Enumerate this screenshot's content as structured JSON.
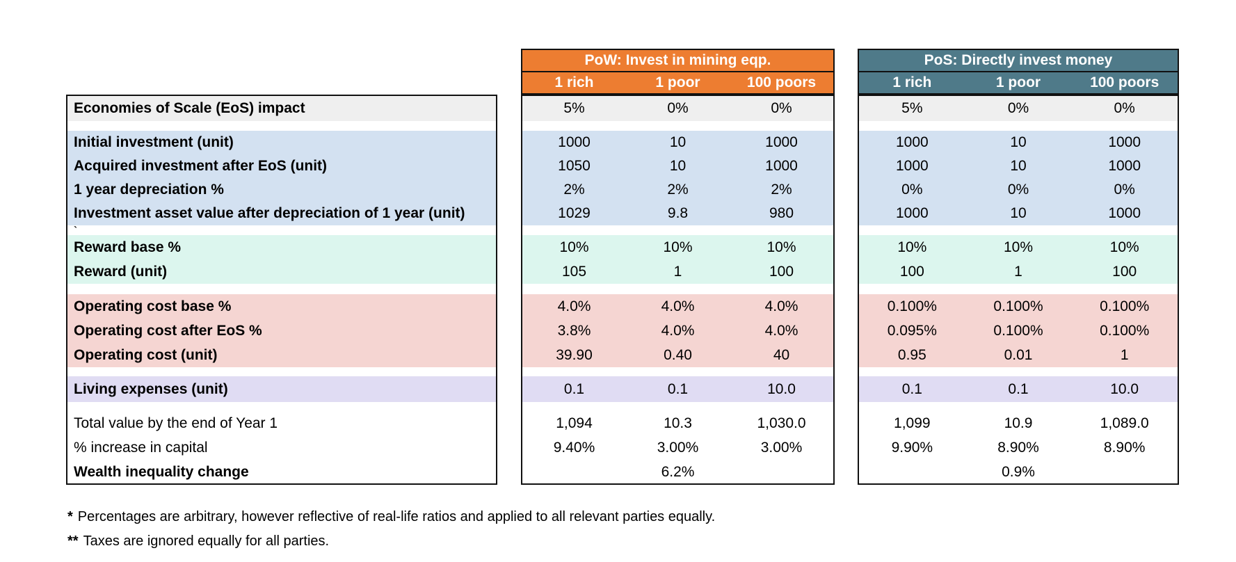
{
  "groups": [
    {
      "key": "pow",
      "title": "PoW: Invest in mining eqp.",
      "accent_color": "#ED7D31",
      "columns": [
        "1 rich",
        "1 poor",
        "100 poors"
      ]
    },
    {
      "key": "pos",
      "title": "PoS: Directly invest money",
      "accent_color": "#4F7A89",
      "columns": [
        "1 rich",
        "1 poor",
        "100 poors"
      ]
    }
  ],
  "section_colors": {
    "gray": "#EFEFEF",
    "blue": "#D3E1F1",
    "mint": "#DCF6EE",
    "pink": "#F5D5D2",
    "lavender": "#E0DCF3"
  },
  "rows": [
    {
      "section": "gray",
      "bold": true,
      "label": "Economies of Scale (EoS) impact",
      "pow": [
        "5%",
        "0%",
        "0%"
      ],
      "pos": [
        "5%",
        "0%",
        "0%"
      ]
    },
    {
      "section": "gap1"
    },
    {
      "section": "blue",
      "bold": true,
      "label": "Initial investment (unit)",
      "pow": [
        "1000",
        "10",
        "1000"
      ],
      "pos": [
        "1000",
        "10",
        "1000"
      ]
    },
    {
      "section": "blue",
      "bold": true,
      "label": "Acquired investment after EoS (unit)",
      "pow": [
        "1050",
        "10",
        "1000"
      ],
      "pos": [
        "1000",
        "10",
        "1000"
      ]
    },
    {
      "section": "blue",
      "bold": true,
      "label": "1 year depreciation %",
      "pow": [
        "2%",
        "2%",
        "2%"
      ],
      "pos": [
        "0%",
        "0%",
        "0%"
      ]
    },
    {
      "section": "blue",
      "bold": true,
      "label": "Investment asset value after depreciation of 1 year (unit)",
      "pow": [
        "1029",
        "9.8",
        "980"
      ],
      "pos": [
        "1000",
        "10",
        "1000"
      ]
    },
    {
      "section": "tick",
      "bold": true,
      "label": "`"
    },
    {
      "section": "mint",
      "bold": true,
      "label": "Reward base %",
      "pow": [
        "10%",
        "10%",
        "10%"
      ],
      "pos": [
        "10%",
        "10%",
        "10%"
      ]
    },
    {
      "section": "mint",
      "bold": true,
      "label": "Reward (unit)",
      "pow": [
        "105",
        "1",
        "100"
      ],
      "pos": [
        "100",
        "1",
        "100"
      ]
    },
    {
      "section": "gap2"
    },
    {
      "section": "pink",
      "bold": true,
      "label": "Operating cost base %",
      "pow": [
        "4.0%",
        "4.0%",
        "4.0%"
      ],
      "pos": [
        "0.100%",
        "0.100%",
        "0.100%"
      ]
    },
    {
      "section": "pink",
      "bold": true,
      "label": "Operating cost after EoS %",
      "pow": [
        "3.8%",
        "4.0%",
        "4.0%"
      ],
      "pos": [
        "0.095%",
        "0.100%",
        "0.100%"
      ]
    },
    {
      "section": "pink",
      "bold": true,
      "label": "Operating cost (unit)",
      "pow": [
        "39.90",
        "0.40",
        "40"
      ],
      "pos": [
        "0.95",
        "0.01",
        "1"
      ]
    },
    {
      "section": "gap3"
    },
    {
      "section": "lavender",
      "bold": true,
      "label": "Living expenses (unit)",
      "pow": [
        "0.1",
        "0.1",
        "10.0"
      ],
      "pos": [
        "0.1",
        "0.1",
        "10.0"
      ]
    },
    {
      "section": "gap4"
    },
    {
      "section": "white",
      "bold": false,
      "label": "Total value by the end of Year 1",
      "pow": [
        "1,094",
        "10.3",
        "1,030.0"
      ],
      "pos": [
        "1,099",
        "10.9",
        "1,089.0"
      ]
    },
    {
      "section": "white",
      "bold": false,
      "label": "% increase in capital",
      "pow": [
        "9.40%",
        "3.00%",
        "3.00%"
      ],
      "pos": [
        "9.90%",
        "8.90%",
        "8.90%"
      ]
    },
    {
      "section": "white",
      "bold": true,
      "label": "Wealth inequality change",
      "pow": [
        "",
        "6.2%",
        ""
      ],
      "pos": [
        "",
        "0.9%",
        ""
      ]
    }
  ],
  "footnotes": [
    {
      "marker": "*",
      "text": "Percentages are arbitrary, however reflective of real-life ratios and applied to all relevant parties equally."
    },
    {
      "marker": "**",
      "text": "Taxes are ignored equally for all parties."
    }
  ]
}
